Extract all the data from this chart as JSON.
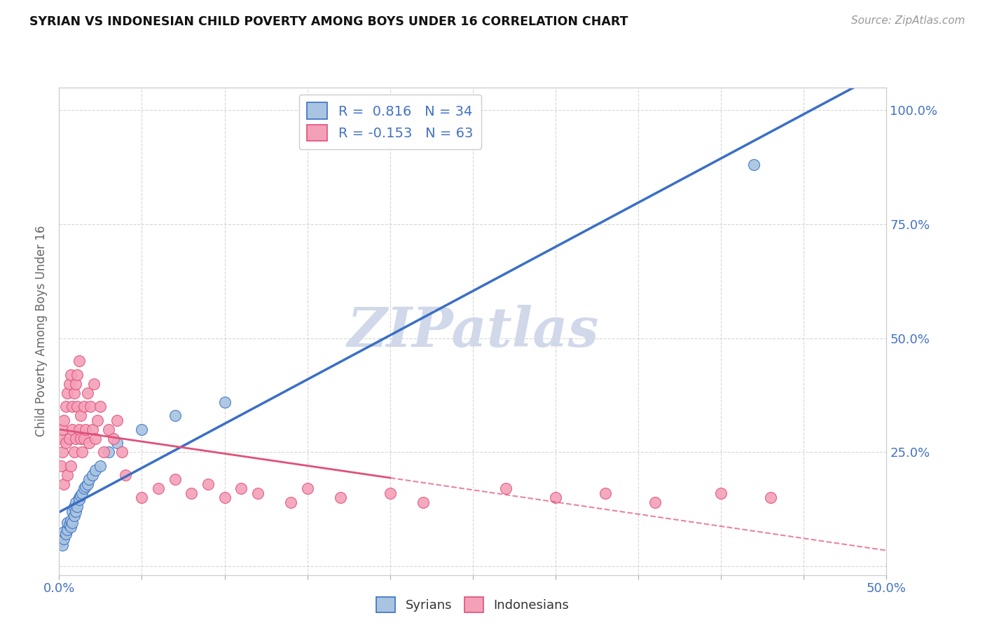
{
  "title": "SYRIAN VS INDONESIAN CHILD POVERTY AMONG BOYS UNDER 16 CORRELATION CHART",
  "source": "Source: ZipAtlas.com",
  "ylabel": "Child Poverty Among Boys Under 16",
  "xlim": [
    0.0,
    0.5
  ],
  "ylim": [
    -0.02,
    1.05
  ],
  "xticks": [
    0.0,
    0.05,
    0.1,
    0.15,
    0.2,
    0.25,
    0.3,
    0.35,
    0.4,
    0.45,
    0.5
  ],
  "yticks": [
    0.0,
    0.25,
    0.5,
    0.75,
    1.0
  ],
  "syrian_R": 0.816,
  "syrian_N": 34,
  "indonesian_R": -0.153,
  "indonesian_N": 63,
  "syrian_color": "#a8c4e0",
  "syrian_line_color": "#3a6fc4",
  "indonesian_color": "#f4a0b8",
  "indonesian_line_color": "#e0507a",
  "watermark": "ZIPatlas",
  "watermark_color": "#d0d8ea",
  "background_color": "#ffffff",
  "legend_color": "#4472c4",
  "syrian_x": [
    0.001,
    0.002,
    0.003,
    0.003,
    0.004,
    0.005,
    0.005,
    0.006,
    0.007,
    0.007,
    0.008,
    0.008,
    0.009,
    0.009,
    0.01,
    0.01,
    0.011,
    0.012,
    0.012,
    0.013,
    0.014,
    0.015,
    0.016,
    0.017,
    0.018,
    0.02,
    0.022,
    0.025,
    0.03,
    0.035,
    0.05,
    0.07,
    0.1,
    0.42
  ],
  "syrian_y": [
    0.055,
    0.045,
    0.06,
    0.075,
    0.07,
    0.08,
    0.095,
    0.09,
    0.085,
    0.1,
    0.095,
    0.12,
    0.11,
    0.13,
    0.12,
    0.14,
    0.13,
    0.15,
    0.145,
    0.155,
    0.16,
    0.17,
    0.175,
    0.18,
    0.19,
    0.2,
    0.21,
    0.22,
    0.25,
    0.27,
    0.3,
    0.33,
    0.36,
    0.88
  ],
  "indonesian_x": [
    0.001,
    0.001,
    0.002,
    0.002,
    0.003,
    0.003,
    0.004,
    0.004,
    0.005,
    0.005,
    0.006,
    0.006,
    0.007,
    0.007,
    0.008,
    0.008,
    0.009,
    0.009,
    0.01,
    0.01,
    0.011,
    0.011,
    0.012,
    0.012,
    0.013,
    0.013,
    0.014,
    0.015,
    0.015,
    0.016,
    0.017,
    0.018,
    0.019,
    0.02,
    0.021,
    0.022,
    0.023,
    0.025,
    0.027,
    0.03,
    0.033,
    0.035,
    0.038,
    0.04,
    0.05,
    0.06,
    0.07,
    0.08,
    0.09,
    0.1,
    0.11,
    0.12,
    0.14,
    0.15,
    0.17,
    0.2,
    0.22,
    0.27,
    0.3,
    0.33,
    0.36,
    0.4,
    0.43
  ],
  "indonesian_y": [
    0.22,
    0.28,
    0.25,
    0.3,
    0.32,
    0.18,
    0.35,
    0.27,
    0.38,
    0.2,
    0.4,
    0.28,
    0.42,
    0.22,
    0.35,
    0.3,
    0.38,
    0.25,
    0.4,
    0.28,
    0.35,
    0.42,
    0.3,
    0.45,
    0.28,
    0.33,
    0.25,
    0.35,
    0.28,
    0.3,
    0.38,
    0.27,
    0.35,
    0.3,
    0.4,
    0.28,
    0.32,
    0.35,
    0.25,
    0.3,
    0.28,
    0.32,
    0.25,
    0.2,
    0.15,
    0.17,
    0.19,
    0.16,
    0.18,
    0.15,
    0.17,
    0.16,
    0.14,
    0.17,
    0.15,
    0.16,
    0.14,
    0.17,
    0.15,
    0.16,
    0.14,
    0.16,
    0.15
  ]
}
